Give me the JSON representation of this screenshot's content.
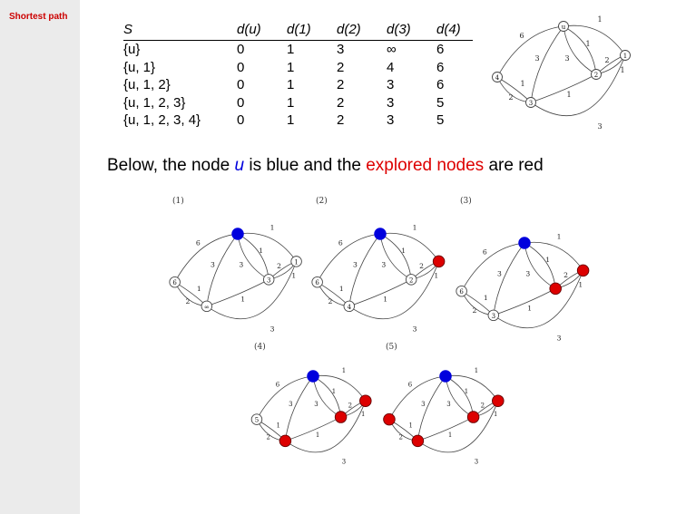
{
  "slide": {
    "section_title": "Shortest path"
  },
  "table": {
    "headers": [
      "S",
      "d(u)",
      "d(1)",
      "d(2)",
      "d(3)",
      "d(4)"
    ],
    "rows": [
      [
        "{u}",
        "0",
        "1",
        "3",
        "∞",
        "6"
      ],
      [
        "{u, 1}",
        "0",
        "1",
        "2",
        "4",
        "6"
      ],
      [
        "{u, 1, 2}",
        "0",
        "1",
        "2",
        "3",
        "6"
      ],
      [
        "{u, 1, 2, 3}",
        "0",
        "1",
        "2",
        "3",
        "5"
      ],
      [
        "{u, 1, 2, 3, 4}",
        "0",
        "1",
        "2",
        "3",
        "5"
      ]
    ]
  },
  "subtitle": {
    "part1": "Below, the node ",
    "node": "u",
    "part2": " is blue and the ",
    "explored": "explored nodes",
    "part3": " are red"
  },
  "colors": {
    "blue_node": "#0000dd",
    "red_node": "#dd0000",
    "title_red": "#cc0000"
  },
  "graph": {
    "node_labels": {
      "u": "u",
      "n1": "1",
      "n2": "2",
      "n3": "3",
      "n4": "4"
    },
    "edges": [
      {
        "from": "u",
        "to": "n4",
        "weight": "6"
      },
      {
        "from": "u",
        "to": "n3",
        "weight": "3"
      },
      {
        "from": "u",
        "to": "n2",
        "weight": "3"
      },
      {
        "from": "u",
        "to": "n2",
        "weight": "1"
      },
      {
        "from": "u",
        "to": "n1",
        "weight": "1"
      },
      {
        "from": "n1",
        "to": "n2",
        "weight": "2"
      },
      {
        "from": "n2",
        "to": "n1",
        "weight": "1"
      },
      {
        "from": "n4",
        "to": "n3",
        "weight": "1"
      },
      {
        "from": "n3",
        "to": "n4",
        "weight": "2"
      },
      {
        "from": "n3",
        "to": "n2",
        "weight": "1"
      },
      {
        "from": "n3",
        "to": "n1",
        "weight": "3"
      }
    ]
  },
  "steps": [
    {
      "label": "(1)",
      "red": [],
      "node_text": {
        "n4": "6",
        "n3": "∞",
        "n2": "3",
        "n1": "1"
      }
    },
    {
      "label": "(2)",
      "red": [
        "n1"
      ],
      "node_text": {
        "n4": "6",
        "n3": "4",
        "n2": "2"
      }
    },
    {
      "label": "(3)",
      "red": [
        "n1",
        "n2"
      ],
      "node_text": {
        "n4": "6",
        "n3": "3"
      }
    },
    {
      "label": "(4)",
      "red": [
        "n1",
        "n2",
        "n3"
      ],
      "node_text": {
        "n4": "5"
      }
    },
    {
      "label": "(5)",
      "red": [
        "n1",
        "n2",
        "n3",
        "n4"
      ],
      "node_text": {}
    }
  ]
}
